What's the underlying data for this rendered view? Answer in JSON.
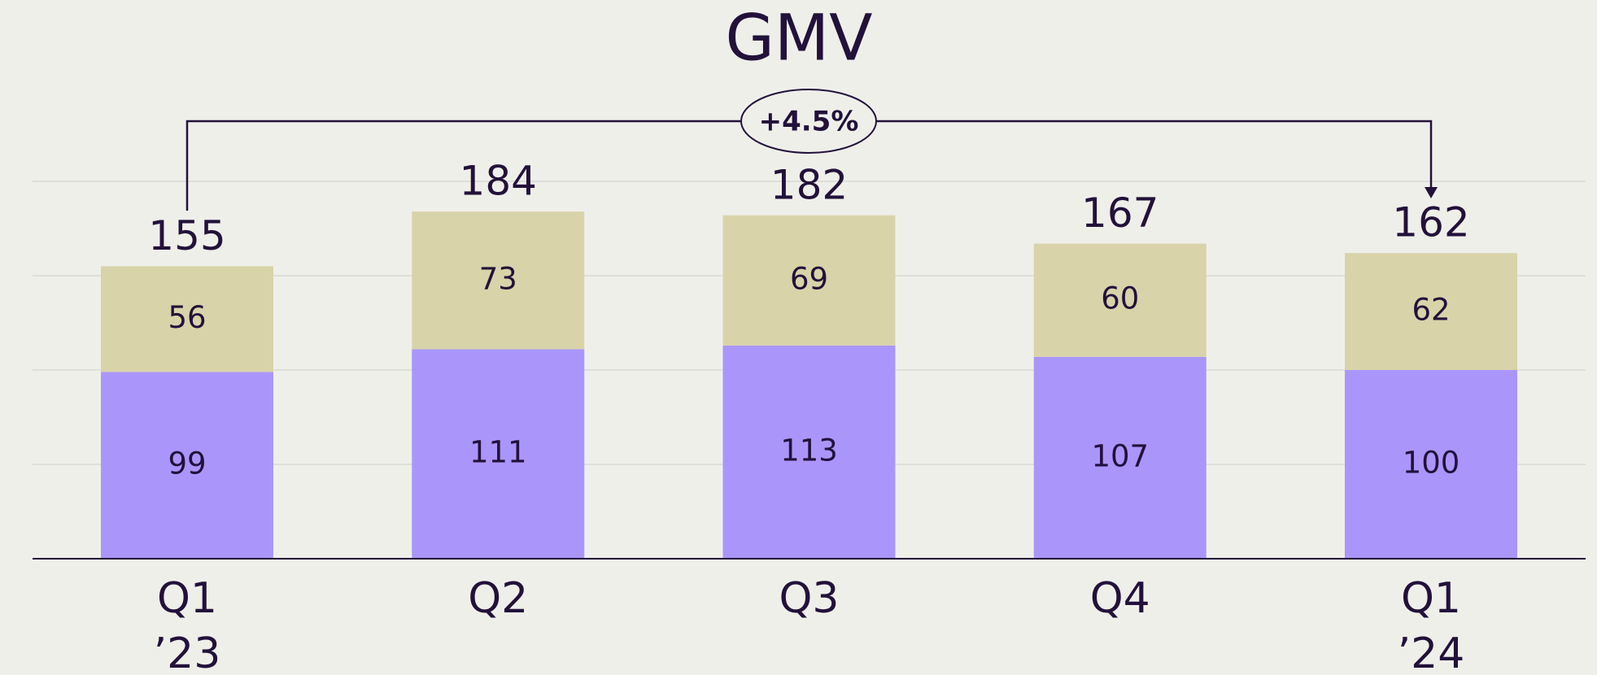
{
  "chart_data": {
    "type": "stacked_bar",
    "title": "GMV",
    "categories": [
      "Q1 ’23",
      "Q2",
      "Q3",
      "Q4",
      "Q1 ’24"
    ],
    "series": [
      {
        "color": "#aa96fb",
        "values": [
          99,
          111,
          113,
          107,
          100
        ]
      },
      {
        "color": "#d9d3aa",
        "values": [
          56,
          73,
          69,
          60,
          62
        ]
      }
    ],
    "totals": [
      155,
      184,
      182,
      167,
      162
    ],
    "annotation": "+4.5%",
    "ylim": [
      0,
      200
    ],
    "yticks": [
      0,
      50,
      100,
      150,
      200
    ],
    "grid": true
  }
}
